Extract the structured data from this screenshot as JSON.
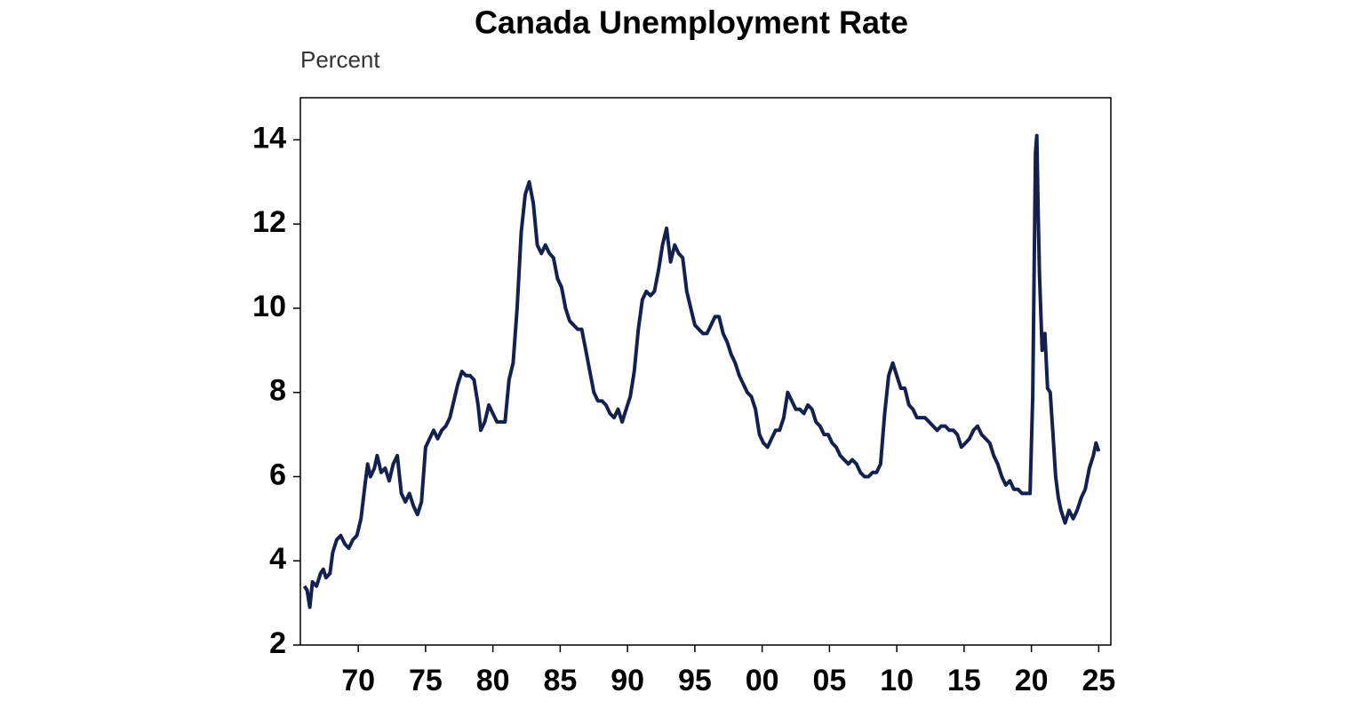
{
  "chart_data": {
    "type": "line",
    "title": "Canada Unemployment Rate",
    "y_label": "Percent",
    "color": "#14214f",
    "x": [
      1966.0,
      1966.2,
      1966.4,
      1966.6,
      1966.9,
      1967.2,
      1967.4,
      1967.6,
      1967.9,
      1968.1,
      1968.4,
      1968.7,
      1969.0,
      1969.3,
      1969.6,
      1969.9,
      1970.2,
      1970.5,
      1970.7,
      1970.9,
      1971.2,
      1971.4,
      1971.7,
      1972.0,
      1972.3,
      1972.6,
      1972.9,
      1973.2,
      1973.5,
      1973.8,
      1974.1,
      1974.4,
      1974.7,
      1975.0,
      1975.3,
      1975.6,
      1975.9,
      1976.2,
      1976.5,
      1976.8,
      1977.1,
      1977.4,
      1977.7,
      1978.0,
      1978.3,
      1978.6,
      1978.9,
      1979.1,
      1979.4,
      1979.7,
      1980.0,
      1980.3,
      1980.6,
      1980.9,
      1981.2,
      1981.5,
      1981.8,
      1982.1,
      1982.4,
      1982.7,
      1983.0,
      1983.3,
      1983.6,
      1983.9,
      1984.2,
      1984.5,
      1984.8,
      1985.1,
      1985.4,
      1985.7,
      1986.0,
      1986.3,
      1986.6,
      1986.9,
      1987.2,
      1987.5,
      1987.8,
      1988.1,
      1988.4,
      1988.7,
      1989.0,
      1989.3,
      1989.6,
      1989.9,
      1990.2,
      1990.5,
      1990.8,
      1991.1,
      1991.4,
      1991.7,
      1992.0,
      1992.3,
      1992.6,
      1992.9,
      1993.2,
      1993.5,
      1993.8,
      1994.1,
      1994.4,
      1994.7,
      1995.0,
      1995.3,
      1995.6,
      1995.9,
      1996.2,
      1996.5,
      1996.8,
      1997.1,
      1997.4,
      1997.7,
      1998.0,
      1998.3,
      1998.6,
      1998.9,
      1999.2,
      1999.5,
      1999.8,
      2000.1,
      2000.4,
      2000.7,
      2001.0,
      2001.3,
      2001.6,
      2001.9,
      2002.2,
      2002.5,
      2002.8,
      2003.1,
      2003.4,
      2003.7,
      2004.0,
      2004.3,
      2004.6,
      2004.9,
      2005.2,
      2005.5,
      2005.8,
      2006.1,
      2006.4,
      2006.7,
      2007.0,
      2007.3,
      2007.6,
      2007.9,
      2008.2,
      2008.5,
      2008.8,
      2009.1,
      2009.4,
      2009.7,
      2010.0,
      2010.3,
      2010.6,
      2010.9,
      2011.2,
      2011.5,
      2011.8,
      2012.1,
      2012.4,
      2012.7,
      2013.0,
      2013.3,
      2013.6,
      2013.9,
      2014.2,
      2014.5,
      2014.8,
      2015.1,
      2015.4,
      2015.7,
      2016.0,
      2016.3,
      2016.6,
      2016.9,
      2017.2,
      2017.5,
      2017.8,
      2018.1,
      2018.4,
      2018.7,
      2019.0,
      2019.3,
      2019.6,
      2019.9,
      2020.1,
      2020.3,
      2020.4,
      2020.5,
      2020.6,
      2020.8,
      2021.0,
      2021.2,
      2021.4,
      2021.6,
      2021.8,
      2022.0,
      2022.2,
      2022.5,
      2022.8,
      2023.1,
      2023.4,
      2023.7,
      2024.0,
      2024.3,
      2024.6,
      2024.8,
      2025.0
    ],
    "values": [
      3.4,
      3.3,
      2.9,
      3.5,
      3.4,
      3.7,
      3.8,
      3.6,
      3.7,
      4.2,
      4.5,
      4.6,
      4.4,
      4.3,
      4.5,
      4.6,
      5.0,
      5.8,
      6.3,
      6.0,
      6.2,
      6.5,
      6.1,
      6.2,
      5.9,
      6.3,
      6.5,
      5.6,
      5.4,
      5.6,
      5.3,
      5.1,
      5.4,
      6.7,
      6.9,
      7.1,
      6.9,
      7.1,
      7.2,
      7.4,
      7.8,
      8.2,
      8.5,
      8.4,
      8.4,
      8.3,
      7.7,
      7.1,
      7.3,
      7.7,
      7.5,
      7.3,
      7.3,
      7.3,
      8.3,
      8.7,
      10.0,
      11.8,
      12.7,
      13.0,
      12.5,
      11.5,
      11.3,
      11.5,
      11.3,
      11.2,
      10.7,
      10.5,
      10.0,
      9.7,
      9.6,
      9.5,
      9.5,
      9.0,
      8.5,
      8.0,
      7.8,
      7.8,
      7.7,
      7.5,
      7.4,
      7.6,
      7.3,
      7.6,
      7.9,
      8.5,
      9.5,
      10.2,
      10.4,
      10.3,
      10.4,
      10.9,
      11.5,
      11.9,
      11.1,
      11.5,
      11.3,
      11.2,
      10.4,
      10.0,
      9.6,
      9.5,
      9.4,
      9.4,
      9.6,
      9.8,
      9.8,
      9.4,
      9.2,
      8.9,
      8.7,
      8.4,
      8.2,
      8.0,
      7.9,
      7.6,
      7.0,
      6.8,
      6.7,
      6.9,
      7.1,
      7.1,
      7.4,
      8.0,
      7.8,
      7.6,
      7.6,
      7.5,
      7.7,
      7.6,
      7.3,
      7.2,
      7.0,
      7.0,
      6.8,
      6.7,
      6.5,
      6.4,
      6.3,
      6.4,
      6.3,
      6.1,
      6.0,
      6.0,
      6.1,
      6.1,
      6.3,
      7.5,
      8.4,
      8.7,
      8.4,
      8.1,
      8.1,
      7.7,
      7.6,
      7.4,
      7.4,
      7.4,
      7.3,
      7.2,
      7.1,
      7.2,
      7.2,
      7.1,
      7.1,
      7.0,
      6.7,
      6.8,
      6.9,
      7.1,
      7.2,
      7.0,
      6.9,
      6.8,
      6.5,
      6.3,
      6.0,
      5.8,
      5.9,
      5.7,
      5.7,
      5.6,
      5.6,
      5.6,
      7.9,
      13.7,
      14.1,
      12.3,
      10.8,
      9.0,
      9.4,
      8.1,
      8.0,
      7.0,
      6.0,
      5.5,
      5.2,
      4.9,
      5.2,
      5.0,
      5.2,
      5.5,
      5.7,
      6.2,
      6.5,
      6.8,
      6.6
    ],
    "xlim": [
      1965.7,
      2025.9
    ],
    "xticks": [
      {
        "value": 1970,
        "label": "70"
      },
      {
        "value": 1975,
        "label": "75"
      },
      {
        "value": 1980,
        "label": "80"
      },
      {
        "value": 1985,
        "label": "85"
      },
      {
        "value": 1990,
        "label": "90"
      },
      {
        "value": 1995,
        "label": "95"
      },
      {
        "value": 2000,
        "label": "00"
      },
      {
        "value": 2005,
        "label": "05"
      },
      {
        "value": 2010,
        "label": "10"
      },
      {
        "value": 2015,
        "label": "15"
      },
      {
        "value": 2020,
        "label": "20"
      },
      {
        "value": 2025,
        "label": "25"
      }
    ],
    "ylim": [
      2,
      15
    ],
    "yticks": [
      2,
      4,
      6,
      8,
      10,
      12,
      14
    ]
  }
}
